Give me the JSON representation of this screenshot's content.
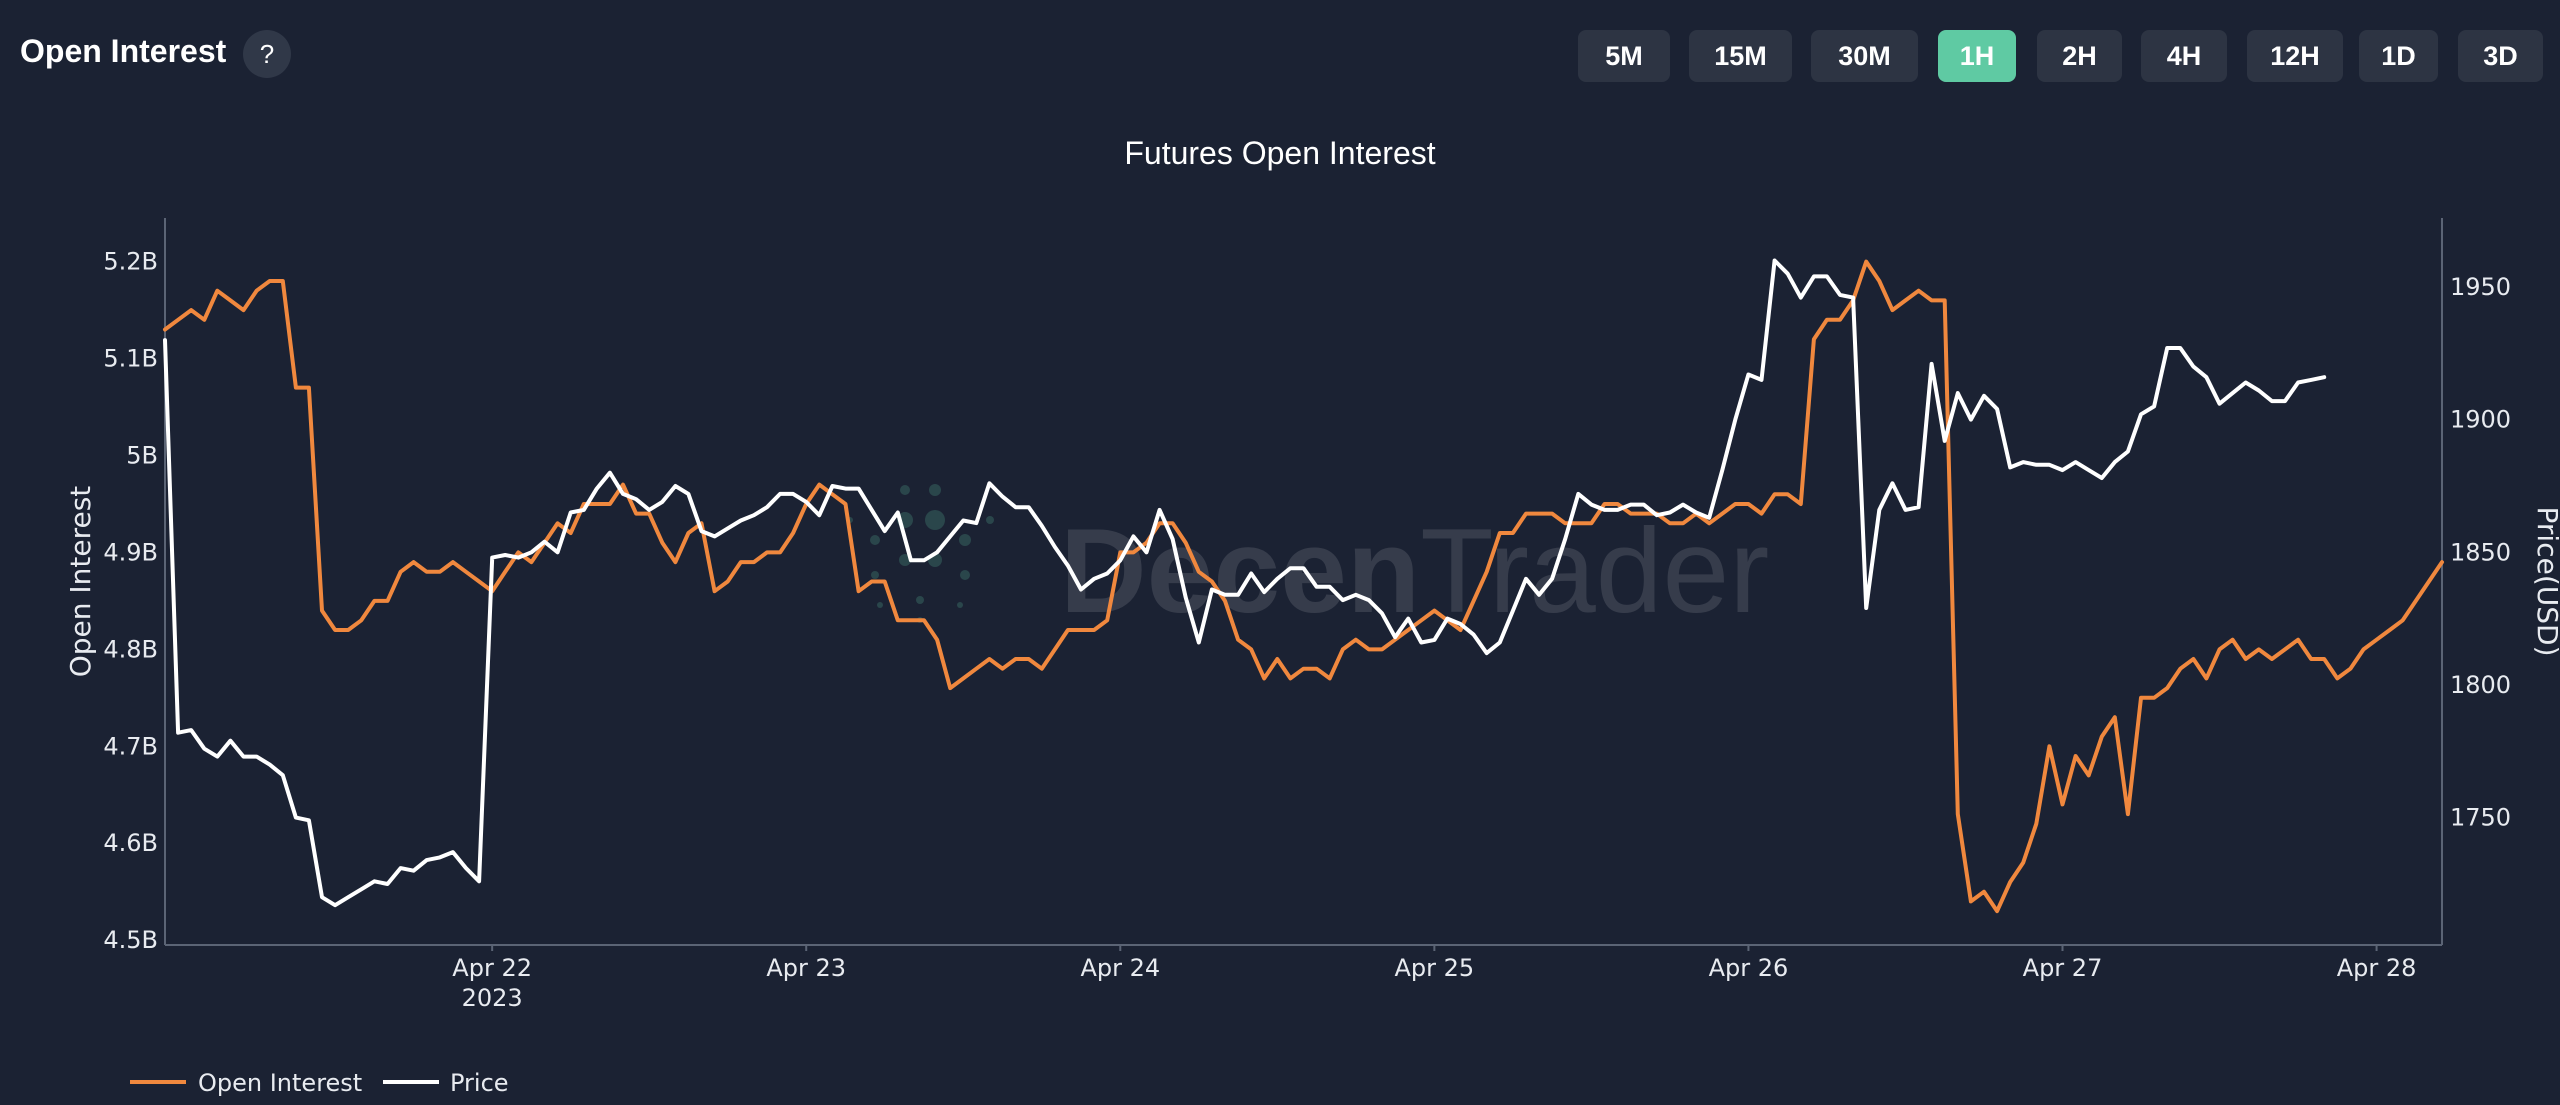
{
  "header": {
    "title": "Open Interest",
    "help_label": "?",
    "timeframes": [
      "5M",
      "15M",
      "30M",
      "1H",
      "2H",
      "4H",
      "12H",
      "1D",
      "3D"
    ],
    "active_timeframe": "1H"
  },
  "watermark": {
    "text_bold": "Decen",
    "text_light": "Trader"
  },
  "colors": {
    "background": "#1b2233",
    "open_interest": "#f0883e",
    "price": "#ffffff",
    "active_button": "#5fcaa3",
    "button": "#2d3443"
  },
  "chart_data": {
    "type": "line",
    "title": "Futures Open Interest",
    "x_ticks": [
      {
        "label": "Apr 22",
        "sublabel": "2023",
        "index": 25
      },
      {
        "label": "Apr 23",
        "sublabel": "",
        "index": 49
      },
      {
        "label": "Apr 24",
        "sublabel": "",
        "index": 73
      },
      {
        "label": "Apr 25",
        "sublabel": "",
        "index": 97
      },
      {
        "label": "Apr 26",
        "sublabel": "",
        "index": 121
      },
      {
        "label": "Apr 27",
        "sublabel": "",
        "index": 145
      },
      {
        "label": "Apr 28",
        "sublabel": "",
        "index": 169
      }
    ],
    "y_left": {
      "label": "Open Interest",
      "range": [
        4.495,
        5.245
      ],
      "ticks": [
        4.5,
        4.6,
        4.7,
        4.8,
        4.9,
        5.0,
        5.1,
        5.2
      ],
      "tick_labels": [
        "4.5B",
        "4.6B",
        "4.7B",
        "4.8B",
        "4.9B",
        "5B",
        "5.1B",
        "5.2B"
      ]
    },
    "y_right": {
      "label": "Price(USD)",
      "range": [
        1702,
        1976
      ],
      "ticks": [
        1750,
        1800,
        1850,
        1900,
        1950
      ],
      "tick_labels": [
        "1750",
        "1800",
        "1850",
        "1900",
        "1950"
      ]
    },
    "grid": false,
    "legend_position": "bottom-left",
    "series": [
      {
        "name": "Open Interest",
        "axis": "left",
        "color": "#f0883e",
        "values": [
          5.13,
          5.14,
          5.15,
          5.14,
          5.17,
          5.16,
          5.15,
          5.17,
          5.18,
          5.18,
          5.07,
          5.07,
          4.84,
          4.82,
          4.82,
          4.83,
          4.85,
          4.85,
          4.88,
          4.89,
          4.88,
          4.88,
          4.89,
          4.88,
          4.87,
          4.86,
          4.88,
          4.9,
          4.89,
          4.91,
          4.93,
          4.92,
          4.95,
          4.95,
          4.95,
          4.97,
          4.94,
          4.94,
          4.91,
          4.89,
          4.92,
          4.93,
          4.86,
          4.87,
          4.89,
          4.89,
          4.9,
          4.9,
          4.92,
          4.95,
          4.97,
          4.96,
          4.95,
          4.86,
          4.87,
          4.87,
          4.83,
          4.83,
          4.83,
          4.81,
          4.76,
          4.77,
          4.78,
          4.79,
          4.78,
          4.79,
          4.79,
          4.78,
          4.8,
          4.82,
          4.82,
          4.82,
          4.83,
          4.9,
          4.9,
          4.91,
          4.93,
          4.93,
          4.91,
          4.88,
          4.87,
          4.85,
          4.81,
          4.8,
          4.77,
          4.79,
          4.77,
          4.78,
          4.78,
          4.77,
          4.8,
          4.81,
          4.8,
          4.8,
          4.81,
          4.82,
          4.83,
          4.84,
          4.83,
          4.82,
          4.85,
          4.88,
          4.92,
          4.92,
          4.94,
          4.94,
          4.94,
          4.93,
          4.93,
          4.93,
          4.95,
          4.95,
          4.94,
          4.94,
          4.94,
          4.93,
          4.93,
          4.94,
          4.93,
          4.94,
          4.95,
          4.95,
          4.94,
          4.96,
          4.96,
          4.95,
          5.12,
          5.14,
          5.14,
          5.16,
          5.2,
          5.18,
          5.15,
          5.16,
          5.17,
          5.16,
          5.16,
          4.63,
          4.54,
          4.55,
          4.53,
          4.56,
          4.58,
          4.62,
          4.7,
          4.64,
          4.69,
          4.67,
          4.71,
          4.73,
          4.63,
          4.75,
          4.75,
          4.76,
          4.78,
          4.79,
          4.77,
          4.8,
          4.81,
          4.79,
          4.8,
          4.79,
          4.8,
          4.81,
          4.79,
          4.79,
          4.77,
          4.78,
          4.8,
          4.81,
          4.82,
          4.83,
          4.85,
          4.87,
          4.89
        ]
      },
      {
        "name": "Price",
        "axis": "right",
        "color": "#ffffff",
        "values": [
          1930,
          1782,
          1783,
          1776,
          1773,
          1779,
          1773,
          1773,
          1770,
          1766,
          1750,
          1749,
          1720,
          1717,
          1720,
          1723,
          1726,
          1725,
          1731,
          1730,
          1734,
          1735,
          1737,
          1731,
          1726,
          1848,
          1849,
          1848,
          1850,
          1854,
          1850,
          1865,
          1866,
          1874,
          1880,
          1872,
          1870,
          1866,
          1869,
          1875,
          1872,
          1858,
          1856,
          1859,
          1862,
          1864,
          1867,
          1872,
          1872,
          1869,
          1864,
          1875,
          1874,
          1874,
          1866,
          1858,
          1865,
          1847,
          1847,
          1850,
          1856,
          1862,
          1861,
          1876,
          1871,
          1867,
          1867,
          1860,
          1852,
          1845,
          1836,
          1840,
          1842,
          1847,
          1856,
          1850,
          1866,
          1855,
          1833,
          1816,
          1836,
          1834,
          1834,
          1842,
          1835,
          1840,
          1844,
          1844,
          1837,
          1837,
          1832,
          1834,
          1832,
          1827,
          1818,
          1825,
          1816,
          1817,
          1825,
          1823,
          1819,
          1812,
          1816,
          1828,
          1840,
          1834,
          1840,
          1855,
          1872,
          1868,
          1866,
          1866,
          1868,
          1868,
          1864,
          1865,
          1868,
          1865,
          1863,
          1881,
          1900,
          1917,
          1915,
          1960,
          1955,
          1946,
          1954,
          1954,
          1947,
          1946,
          1829,
          1866,
          1876,
          1866,
          1867,
          1921,
          1892,
          1910,
          1900,
          1909,
          1904,
          1882,
          1884,
          1883,
          1883,
          1881,
          1884,
          1881,
          1878,
          1884,
          1888,
          1902,
          1905,
          1927,
          1927,
          1920,
          1916,
          1906,
          1910,
          1914,
          1911,
          1907,
          1907,
          1914,
          1915,
          1916
        ]
      }
    ]
  }
}
